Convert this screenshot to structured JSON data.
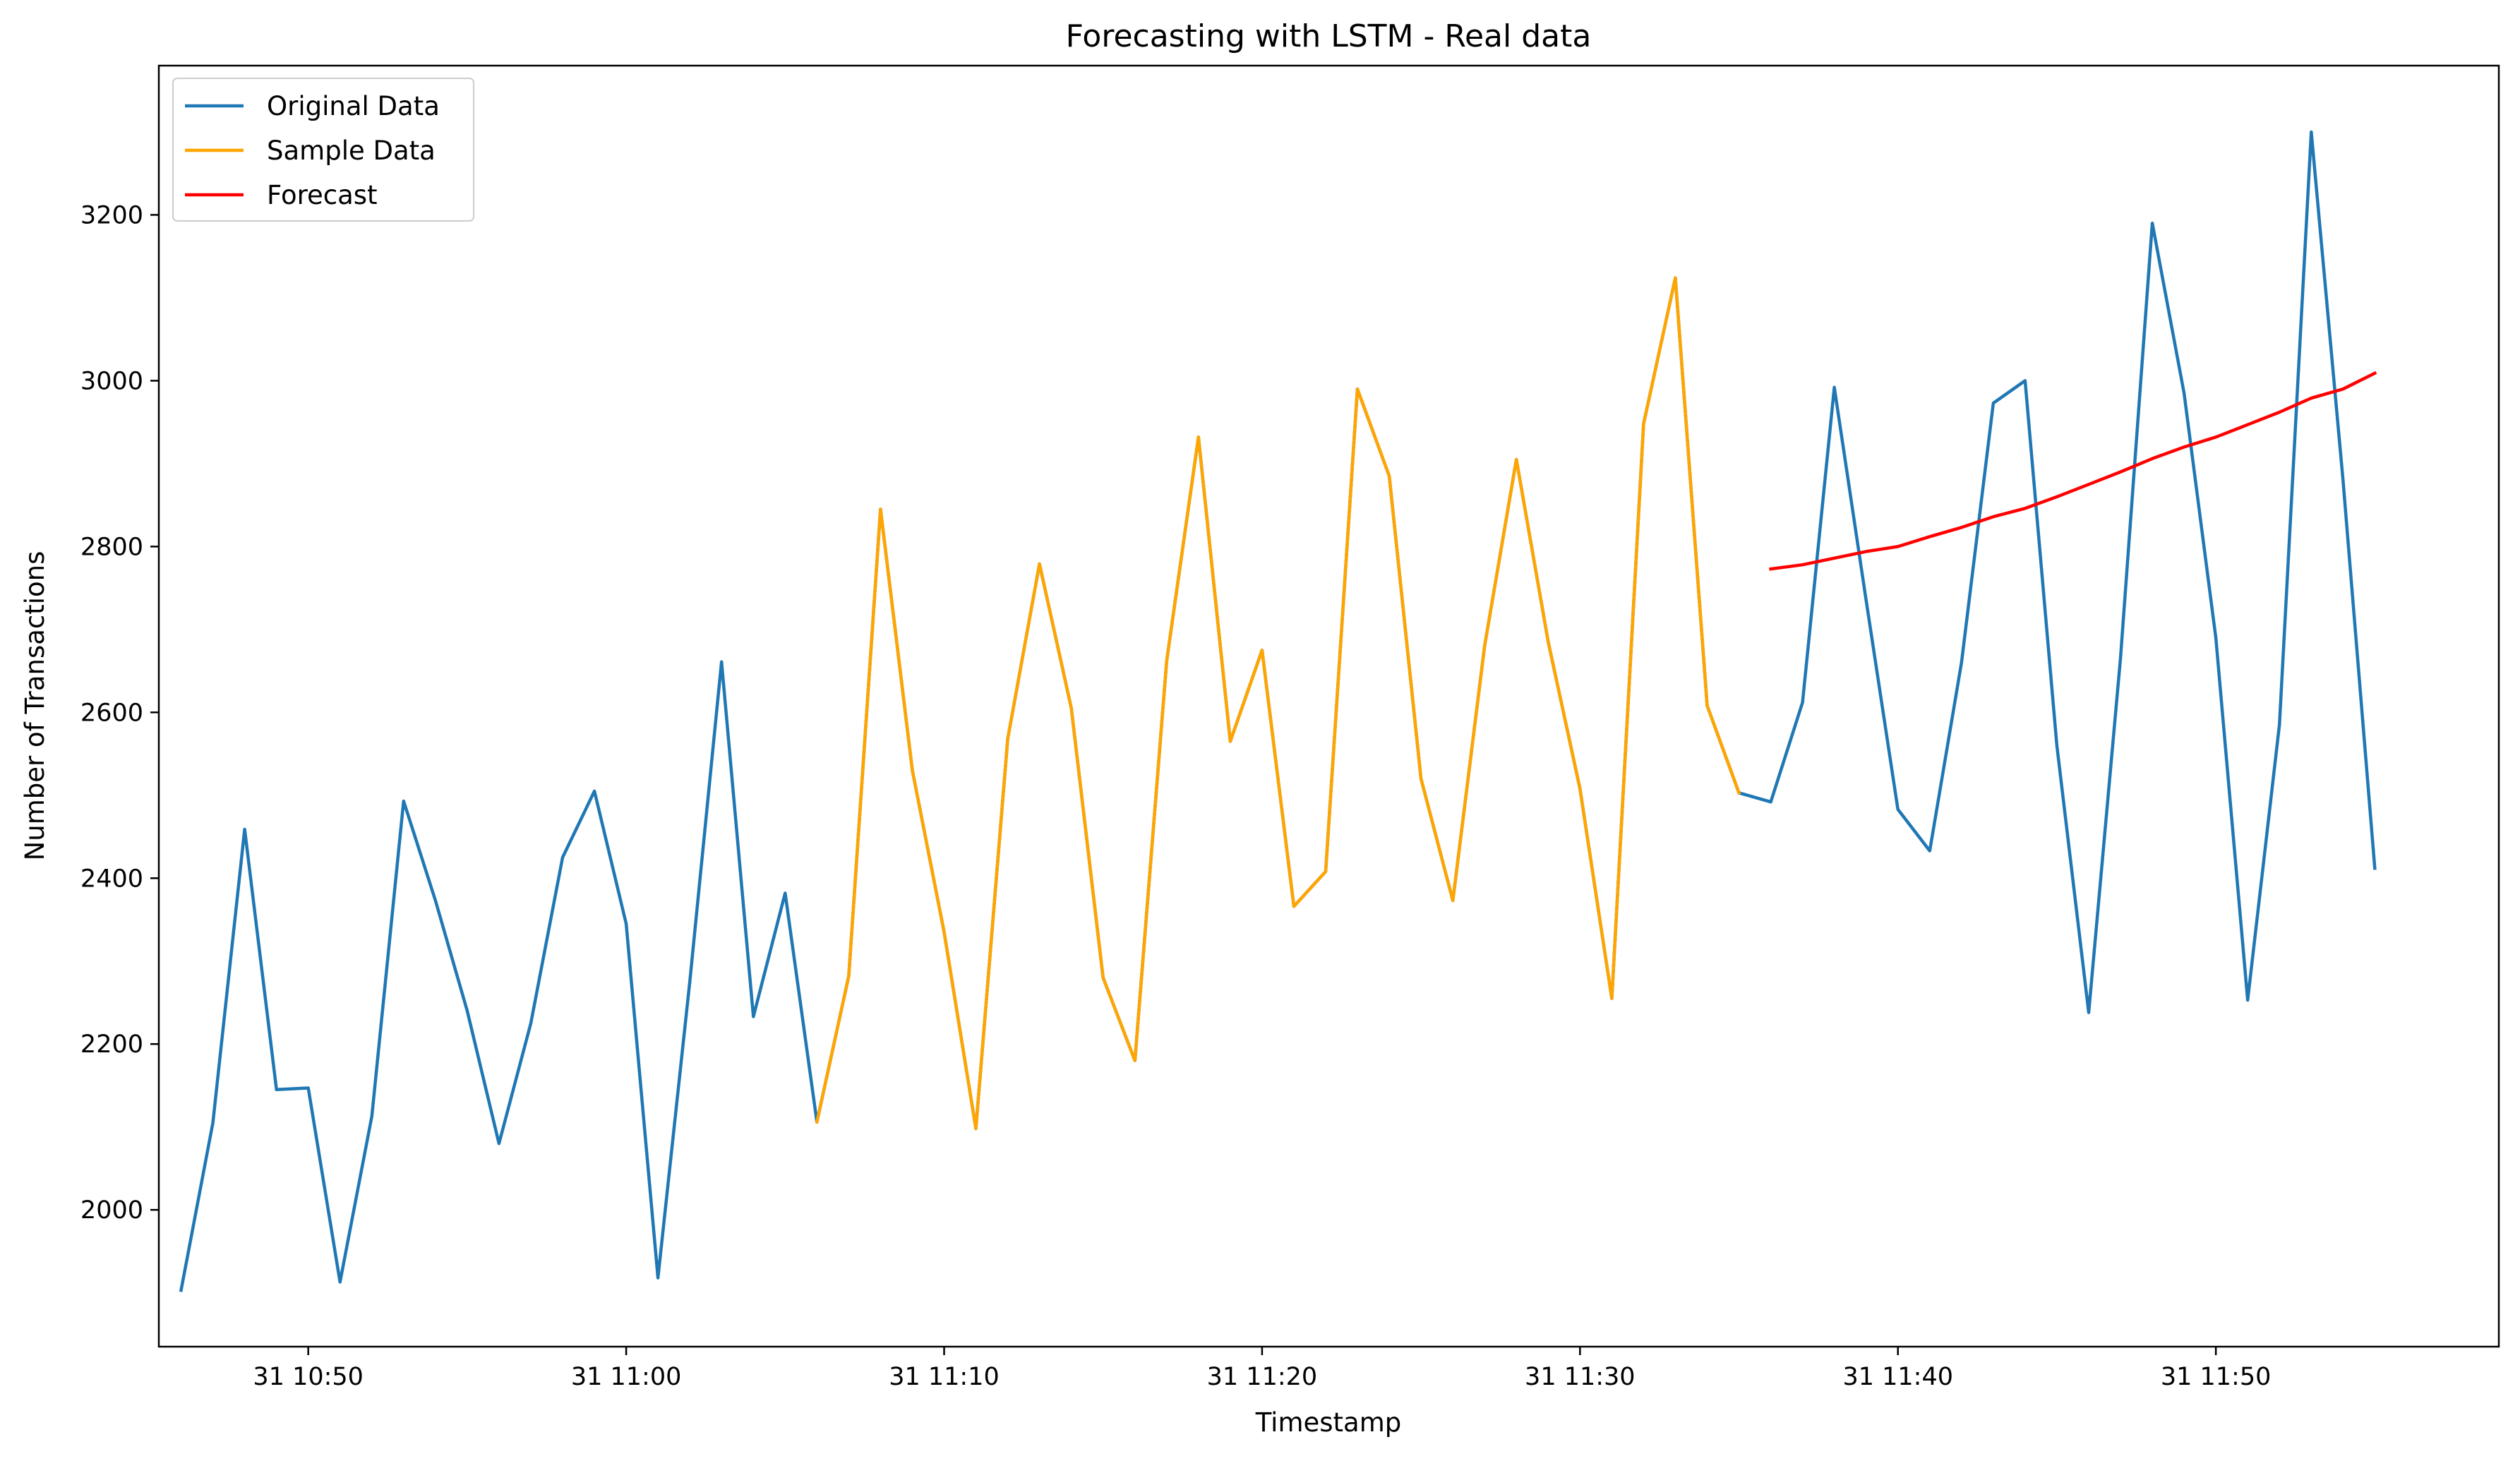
{
  "chart_data": {
    "type": "line",
    "title": "Forecasting with LSTM - Real data",
    "xlabel": "Timestamp",
    "ylabel": "Number of Transactions",
    "x_unit": "minutes since 10:00 on day 31",
    "xlim": [
      45.3,
      118.9
    ],
    "ylim": [
      1835,
      3380
    ],
    "grid": false,
    "legend_position": "top-left",
    "x_ticks": [
      {
        "value": 50,
        "label": "31 10:50"
      },
      {
        "value": 60,
        "label": "31 11:00"
      },
      {
        "value": 70,
        "label": "31 11:10"
      },
      {
        "value": 80,
        "label": "31 11:20"
      },
      {
        "value": 90,
        "label": "31 11:30"
      },
      {
        "value": 100,
        "label": "31 11:40"
      },
      {
        "value": 110,
        "label": "31 11:50"
      }
    ],
    "y_ticks": [
      {
        "value": 2000,
        "label": "2000"
      },
      {
        "value": 2200,
        "label": "2200"
      },
      {
        "value": 2400,
        "label": "2400"
      },
      {
        "value": 2600,
        "label": "2600"
      },
      {
        "value": 2800,
        "label": "2800"
      },
      {
        "value": 3000,
        "label": "3000"
      },
      {
        "value": 3200,
        "label": "3200"
      }
    ],
    "series": [
      {
        "name": "Original Data",
        "color": "#1f77b4",
        "x": [
          46,
          47,
          48,
          49,
          50,
          51,
          52,
          53,
          54,
          55,
          56,
          57,
          58,
          59,
          60,
          61,
          62,
          63,
          64,
          65,
          66,
          67,
          68,
          69,
          70,
          71,
          72,
          73,
          74,
          75,
          76,
          77,
          78,
          79,
          80,
          81,
          82,
          83,
          84,
          85,
          86,
          87,
          88,
          89,
          90,
          91,
          92,
          93,
          94,
          95,
          96,
          97,
          98,
          99,
          100,
          101,
          102,
          103,
          104,
          105,
          106,
          107,
          108,
          109,
          110,
          111,
          112,
          113,
          114,
          115
        ],
        "values": [
          1903,
          2105,
          2459,
          2145,
          2147,
          1913,
          2113,
          2493,
          2373,
          2240,
          2080,
          2225,
          2425,
          2505,
          2345,
          1918,
          2275,
          2661,
          2233,
          2382,
          2106,
          2282,
          2845,
          2530,
          2335,
          2098,
          2568,
          2779,
          2605,
          2280,
          2180,
          2662,
          2932,
          2565,
          2675,
          2366,
          2408,
          2990,
          2885,
          2520,
          2373,
          2680,
          2905,
          2685,
          2508,
          2255,
          2948,
          3124,
          2608,
          2503,
          2492,
          2612,
          2992,
          2735,
          2483,
          2433,
          2660,
          2973,
          3000,
          2560,
          2238,
          2665,
          3190,
          2985,
          2690,
          2253,
          2585,
          3300,
          2880,
          2412
        ]
      },
      {
        "name": "Sample Data",
        "color": "#ffa500",
        "x": [
          66,
          67,
          68,
          69,
          70,
          71,
          72,
          73,
          74,
          75,
          76,
          77,
          78,
          79,
          80,
          81,
          82,
          83,
          84,
          85,
          86,
          87,
          88,
          89,
          90,
          91,
          92,
          93,
          94,
          95
        ],
        "values": [
          2106,
          2282,
          2845,
          2530,
          2335,
          2098,
          2568,
          2779,
          2605,
          2280,
          2180,
          2662,
          2932,
          2565,
          2675,
          2366,
          2408,
          2990,
          2885,
          2520,
          2373,
          2680,
          2905,
          2685,
          2508,
          2255,
          2948,
          3124,
          2608,
          2503
        ]
      },
      {
        "name": "Forecast",
        "color": "#ff0000",
        "x": [
          96,
          97,
          98,
          99,
          100,
          101,
          102,
          103,
          104,
          105,
          106,
          107,
          108,
          109,
          110,
          111,
          112,
          113,
          114,
          115
        ],
        "values": [
          2773,
          2778,
          2786,
          2794,
          2800,
          2812,
          2823,
          2836,
          2846,
          2860,
          2875,
          2890,
          2906,
          2920,
          2932,
          2947,
          2962,
          2979,
          2990,
          3009
        ]
      }
    ]
  }
}
